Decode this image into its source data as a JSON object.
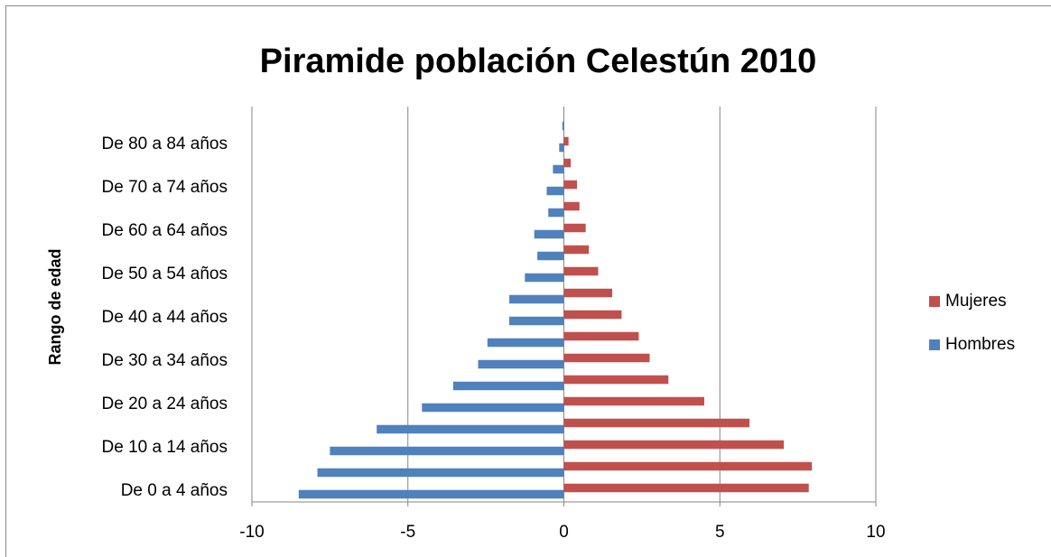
{
  "chart_data": {
    "type": "bar",
    "orientation": "horizontal",
    "title": "Piramide población Celestún 2010",
    "y_label": "Rango de edad",
    "categories": [
      "De 0 a 4 años",
      null,
      "De 10 a 14 años",
      null,
      "De 20 a 24 años",
      null,
      "De 30 a 34 años",
      null,
      "De 40 a 44 años",
      null,
      "De 50 a 54 años",
      null,
      "De 60 a 64 años",
      null,
      "De 70 a 74 años",
      null,
      "De 80 a 84 años",
      null
    ],
    "series": [
      {
        "name": "Hombres",
        "color": "#4f81bd",
        "values": [
          -8.5,
          -7.9,
          -7.5,
          -6.0,
          -4.55,
          -3.55,
          -2.75,
          -2.45,
          -1.75,
          -1.75,
          -1.25,
          -0.85,
          -0.95,
          -0.5,
          -0.55,
          -0.35,
          -0.15,
          -0.05
        ]
      },
      {
        "name": "Mujeres",
        "color": "#c0504d",
        "values": [
          7.85,
          7.95,
          7.05,
          5.95,
          4.5,
          3.35,
          2.75,
          2.4,
          1.85,
          1.55,
          1.1,
          0.8,
          0.7,
          0.5,
          0.42,
          0.22,
          0.15,
          0.0
        ]
      }
    ],
    "xlim": [
      -10,
      10
    ],
    "xticks": [
      -10,
      -5,
      0,
      5,
      10
    ],
    "grid": true,
    "legend": "right"
  }
}
